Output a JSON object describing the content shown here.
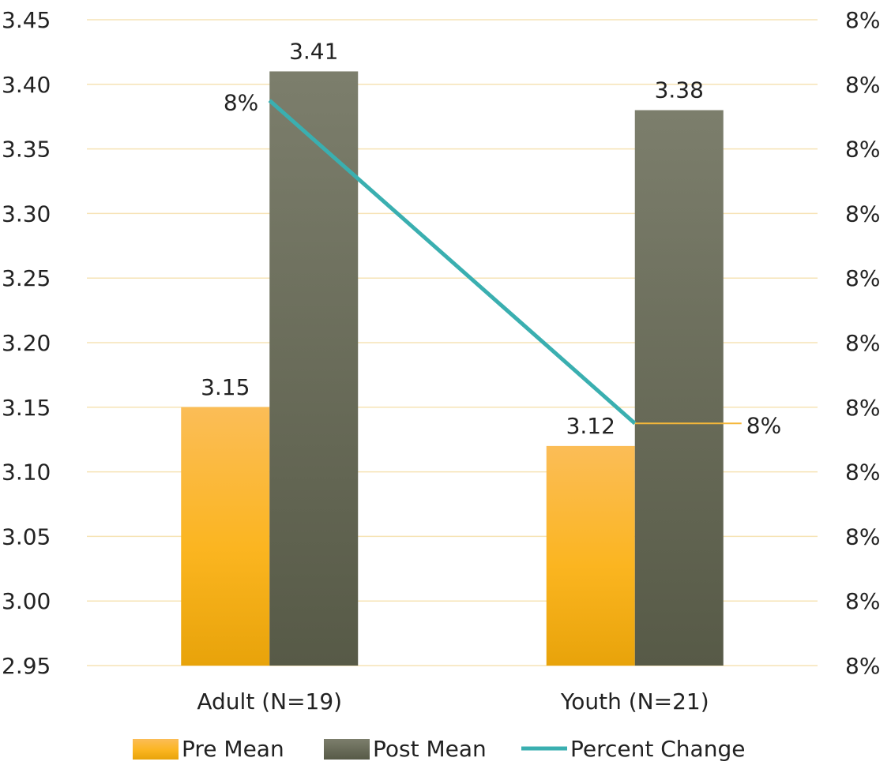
{
  "chart_data": {
    "type": "bar",
    "categories": [
      "Adult (N=19)",
      "Youth (N=21)"
    ],
    "series": [
      {
        "name": "Pre Mean",
        "kind": "bar",
        "axis": "left",
        "values": [
          3.15,
          3.12
        ],
        "value_labels": [
          "3.15",
          "3.12"
        ],
        "color": "#FBB52B"
      },
      {
        "name": "Post Mean",
        "kind": "bar",
        "axis": "left",
        "values": [
          3.41,
          3.38
        ],
        "value_labels": [
          "3.41",
          "3.38"
        ],
        "color": "#6E7060"
      },
      {
        "name": "Percent Change",
        "kind": "line",
        "axis": "right",
        "values": [
          0.083,
          0.081
        ],
        "value_labels": [
          "8%",
          "8%"
        ],
        "color": "#3AAFB0"
      }
    ],
    "ylim": [
      2.95,
      3.45
    ],
    "yticks": [
      "2.95",
      "3.00",
      "3.05",
      "3.10",
      "3.15",
      "3.20",
      "3.25",
      "3.30",
      "3.35",
      "3.40",
      "3.45"
    ],
    "y2ticks": [
      "8%",
      "8%",
      "8%",
      "8%",
      "8%",
      "8%",
      "8%",
      "8%",
      "8%",
      "8%",
      "8%"
    ],
    "y2lim": [
      0.0795,
      0.0835
    ],
    "grid": true,
    "legend": "bottom",
    "colors": {
      "grid": "#F6E3B5",
      "leader": "#F5B73A"
    }
  }
}
